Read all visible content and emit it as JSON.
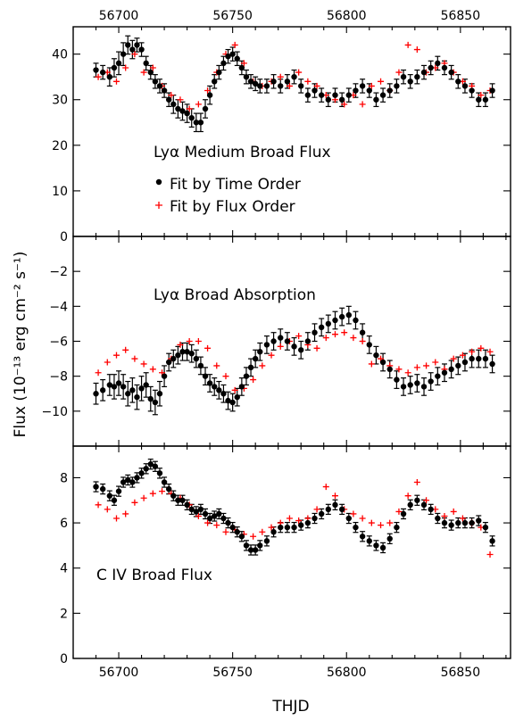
{
  "colors": {
    "time_order": "#000000",
    "flux_order": "#ff0000"
  },
  "axes": {
    "xlabel": "THJD",
    "ylabel": "Flux (10⁻¹³ erg cm⁻² s⁻¹)"
  },
  "chart_data": [
    {
      "type": "scatter",
      "annotation": "Lyα Medium Broad Flux",
      "xlim": [
        56680,
        56872
      ],
      "ylim": [
        0,
        46
      ],
      "xticks": [
        56700,
        56750,
        56800,
        56850
      ],
      "xtick_labels": [
        "56700",
        "56750",
        "56800",
        "56850"
      ],
      "yticks": [
        0,
        10,
        20,
        30,
        40
      ],
      "ytick_labels": [
        "0",
        "10",
        "20",
        "30",
        "40"
      ],
      "legend": [
        "Fit by Time Order",
        "Fit by Flux Order"
      ],
      "series": [
        {
          "name": "Fit by Time Order",
          "marker": "dot",
          "x": [
            56690,
            56693,
            56696,
            56698,
            56700,
            56702,
            56704,
            56706,
            56708,
            56710,
            56712,
            56714,
            56716,
            56718,
            56720,
            56722,
            56724,
            56726,
            56728,
            56730,
            56732,
            56734,
            56736,
            56738,
            56740,
            56742,
            56744,
            56746,
            56748,
            56750,
            56752,
            56754,
            56756,
            56758,
            56760,
            56762,
            56765,
            56768,
            56771,
            56774,
            56777,
            56780,
            56783,
            56786,
            56789,
            56792,
            56795,
            56798,
            56801,
            56804,
            56807,
            56810,
            56813,
            56816,
            56819,
            56822,
            56825,
            56828,
            56831,
            56834,
            56837,
            56840,
            56843,
            56846,
            56849,
            56852,
            56855,
            56858,
            56861,
            56864
          ],
          "y": [
            36.5,
            36,
            35,
            37,
            38,
            40,
            42,
            41,
            42,
            41,
            38,
            36,
            34,
            33,
            32,
            30,
            29,
            28,
            27.5,
            27,
            26,
            25,
            25,
            28,
            31,
            34,
            36,
            38,
            39.5,
            40,
            39,
            37,
            35,
            34,
            33.5,
            33,
            33,
            34,
            33,
            34,
            35,
            33,
            31,
            32,
            31,
            30,
            31,
            30,
            31,
            32,
            33,
            32,
            30,
            31,
            32,
            33,
            35,
            34,
            35,
            36,
            37,
            38,
            37,
            36,
            34,
            33,
            32,
            30,
            30,
            32
          ],
          "err": [
            1.5,
            1.5,
            2,
            2,
            2.5,
            2.5,
            2,
            2,
            1.5,
            1.5,
            1.5,
            1.5,
            1.5,
            1.5,
            1.5,
            1.5,
            2,
            2,
            2,
            2,
            2,
            2,
            2,
            2,
            2,
            1.5,
            1.5,
            1.5,
            1.5,
            1.5,
            1.5,
            1.5,
            1.5,
            1.5,
            1.5,
            1.5,
            1.5,
            1.5,
            1.5,
            1.5,
            1.5,
            1.5,
            1.5,
            1.5,
            1.5,
            1.5,
            1.5,
            1.5,
            1.5,
            1.5,
            1.5,
            1.5,
            1.5,
            1.5,
            1.5,
            1.5,
            1.5,
            1.5,
            1.5,
            1.5,
            1.5,
            1.5,
            1.5,
            1.5,
            1.5,
            1.5,
            1.5,
            1.5,
            1.5,
            1.5
          ]
        },
        {
          "name": "Fit by Flux Order",
          "marker": "plus",
          "x": [
            56691,
            56695,
            56699,
            56703,
            56707,
            56711,
            56715,
            56719,
            56723,
            56727,
            56731,
            56735,
            56739,
            56743,
            56747,
            56751,
            56755,
            56759,
            56763,
            56767,
            56771,
            56775,
            56779,
            56783,
            56787,
            56791,
            56795,
            56799,
            56803,
            56807,
            56811,
            56815,
            56819,
            56823,
            56827,
            56831,
            56835,
            56839,
            56843,
            56847,
            56851,
            56855,
            56859,
            56863
          ],
          "y": [
            35,
            36,
            34,
            37,
            40,
            36,
            37,
            33,
            31,
            30,
            28,
            29,
            32,
            36,
            40,
            42,
            38,
            34,
            33,
            34,
            35,
            33,
            36,
            34,
            33,
            31,
            30,
            29,
            31,
            29,
            33,
            34,
            32,
            36,
            42,
            41,
            36,
            37,
            38,
            36,
            34,
            33,
            31,
            32
          ]
        }
      ]
    },
    {
      "type": "scatter",
      "annotation": "Lyα Broad Absorption",
      "xlim": [
        56680,
        56872
      ],
      "ylim": [
        -12,
        0
      ],
      "xticks": [
        56700,
        56750,
        56800,
        56850
      ],
      "xtick_labels": [
        "56700",
        "56750",
        "56800",
        "56850"
      ],
      "yticks": [
        -10,
        -8,
        -6,
        -4,
        -2
      ],
      "ytick_labels": [
        "−10",
        "−8",
        "−6",
        "−4",
        "−2"
      ],
      "series": [
        {
          "name": "Fit by Time Order",
          "marker": "dot",
          "x": [
            56690,
            56693,
            56696,
            56698,
            56700,
            56702,
            56704,
            56706,
            56708,
            56710,
            56712,
            56714,
            56716,
            56718,
            56720,
            56722,
            56724,
            56726,
            56728,
            56730,
            56732,
            56734,
            56736,
            56738,
            56740,
            56742,
            56744,
            56746,
            56748,
            56750,
            56752,
            56754,
            56756,
            56758,
            56760,
            56762,
            56765,
            56768,
            56771,
            56774,
            56777,
            56780,
            56783,
            56786,
            56789,
            56792,
            56795,
            56798,
            56801,
            56804,
            56807,
            56810,
            56813,
            56816,
            56819,
            56822,
            56825,
            56828,
            56831,
            56834,
            56837,
            56840,
            56843,
            56846,
            56849,
            56852,
            56855,
            56858,
            56861,
            56864
          ],
          "y": [
            -9,
            -8.8,
            -8.5,
            -8.6,
            -8.4,
            -8.6,
            -9,
            -8.8,
            -9.2,
            -8.7,
            -8.5,
            -9.3,
            -9.5,
            -9,
            -8,
            -7.2,
            -7,
            -6.8,
            -6.6,
            -6.6,
            -6.7,
            -7,
            -7.4,
            -8,
            -8.4,
            -8.6,
            -8.8,
            -9,
            -9.4,
            -9.5,
            -9.2,
            -8.6,
            -8,
            -7.5,
            -7,
            -6.6,
            -6.2,
            -6,
            -5.8,
            -6,
            -6.3,
            -6.5,
            -6,
            -5.5,
            -5.2,
            -5,
            -4.8,
            -4.6,
            -4.5,
            -4.8,
            -5.5,
            -6.2,
            -6.8,
            -7.2,
            -7.6,
            -8.2,
            -8.6,
            -8.5,
            -8.4,
            -8.6,
            -8.3,
            -8,
            -7.8,
            -7.6,
            -7.4,
            -7.2,
            -7,
            -7,
            -7,
            -7.3
          ],
          "err": [
            0.6,
            0.6,
            0.6,
            0.7,
            0.7,
            0.7,
            0.7,
            0.7,
            0.7,
            0.7,
            0.7,
            0.7,
            0.7,
            0.7,
            0.6,
            0.5,
            0.5,
            0.5,
            0.5,
            0.5,
            0.5,
            0.5,
            0.5,
            0.5,
            0.5,
            0.5,
            0.5,
            0.5,
            0.5,
            0.5,
            0.5,
            0.5,
            0.5,
            0.5,
            0.5,
            0.5,
            0.5,
            0.5,
            0.5,
            0.5,
            0.5,
            0.5,
            0.5,
            0.5,
            0.5,
            0.5,
            0.5,
            0.5,
            0.5,
            0.5,
            0.5,
            0.5,
            0.5,
            0.5,
            0.5,
            0.5,
            0.5,
            0.5,
            0.5,
            0.5,
            0.5,
            0.5,
            0.5,
            0.5,
            0.5,
            0.5,
            0.5,
            0.5,
            0.5,
            0.5
          ]
        },
        {
          "name": "Fit by Flux Order",
          "marker": "plus",
          "x": [
            56691,
            56695,
            56699,
            56703,
            56707,
            56711,
            56715,
            56719,
            56723,
            56727,
            56731,
            56735,
            56739,
            56743,
            56747,
            56751,
            56755,
            56759,
            56763,
            56767,
            56771,
            56775,
            56779,
            56783,
            56787,
            56791,
            56795,
            56799,
            56803,
            56807,
            56811,
            56815,
            56819,
            56823,
            56827,
            56831,
            56835,
            56839,
            56843,
            56847,
            56851,
            56855,
            56859,
            56863
          ],
          "y": [
            -7.8,
            -7.2,
            -6.8,
            -6.5,
            -7,
            -7.3,
            -7.6,
            -7.8,
            -7,
            -6.2,
            -6,
            -6,
            -6.4,
            -7.4,
            -8,
            -8.8,
            -8.7,
            -8.2,
            -7.4,
            -6.8,
            -6.3,
            -6,
            -5.7,
            -6.2,
            -6.4,
            -5.8,
            -5.6,
            -5.5,
            -5.8,
            -6,
            -7.3,
            -7,
            -7.4,
            -7.6,
            -7.8,
            -7.5,
            -7.4,
            -7.2,
            -7.6,
            -7,
            -6.8,
            -6.6,
            -6.4,
            -6.6
          ]
        }
      ]
    },
    {
      "type": "scatter",
      "annotation": "C IV Broad Flux",
      "xlim": [
        56680,
        56872
      ],
      "ylim": [
        0,
        9.4
      ],
      "xticks": [
        56700,
        56750,
        56800,
        56850
      ],
      "xtick_labels": [
        "56700",
        "56750",
        "56800",
        "56850"
      ],
      "yticks": [
        0,
        2,
        4,
        6,
        8
      ],
      "ytick_labels": [
        "0",
        "2",
        "4",
        "6",
        "8"
      ],
      "series": [
        {
          "name": "Fit by Time Order",
          "marker": "dot",
          "x": [
            56690,
            56693,
            56696,
            56698,
            56700,
            56702,
            56704,
            56706,
            56708,
            56710,
            56712,
            56714,
            56716,
            56718,
            56720,
            56722,
            56724,
            56726,
            56728,
            56730,
            56732,
            56734,
            56736,
            56738,
            56740,
            56742,
            56744,
            56746,
            56748,
            56750,
            56752,
            56754,
            56756,
            56758,
            56760,
            56762,
            56765,
            56768,
            56771,
            56774,
            56777,
            56780,
            56783,
            56786,
            56789,
            56792,
            56795,
            56798,
            56801,
            56804,
            56807,
            56810,
            56813,
            56816,
            56819,
            56822,
            56825,
            56828,
            56831,
            56834,
            56837,
            56840,
            56843,
            56846,
            56849,
            56852,
            56855,
            56858,
            56861,
            56864
          ],
          "y": [
            7.6,
            7.5,
            7.2,
            7.0,
            7.4,
            7.8,
            7.9,
            7.8,
            8.0,
            8.2,
            8.4,
            8.6,
            8.5,
            8.2,
            7.8,
            7.5,
            7.2,
            7.0,
            7.0,
            6.8,
            6.6,
            6.5,
            6.6,
            6.4,
            6.2,
            6.3,
            6.4,
            6.2,
            6.0,
            5.8,
            5.6,
            5.4,
            5.0,
            4.8,
            4.8,
            5.0,
            5.2,
            5.6,
            5.8,
            5.8,
            5.8,
            5.9,
            6.0,
            6.2,
            6.4,
            6.6,
            6.8,
            6.6,
            6.2,
            5.8,
            5.4,
            5.2,
            5.0,
            4.9,
            5.3,
            5.8,
            6.4,
            6.8,
            7.0,
            6.8,
            6.6,
            6.2,
            6.0,
            5.9,
            6.0,
            6.0,
            6.0,
            6.1,
            5.8,
            5.2
          ],
          "err": [
            0.22,
            0.22,
            0.22,
            0.22,
            0.22,
            0.22,
            0.22,
            0.22,
            0.22,
            0.22,
            0.22,
            0.22,
            0.22,
            0.22,
            0.22,
            0.22,
            0.22,
            0.22,
            0.22,
            0.22,
            0.22,
            0.22,
            0.22,
            0.22,
            0.22,
            0.22,
            0.22,
            0.22,
            0.22,
            0.22,
            0.22,
            0.22,
            0.22,
            0.22,
            0.22,
            0.22,
            0.22,
            0.22,
            0.22,
            0.22,
            0.22,
            0.22,
            0.22,
            0.22,
            0.22,
            0.22,
            0.22,
            0.22,
            0.22,
            0.22,
            0.22,
            0.22,
            0.22,
            0.22,
            0.22,
            0.22,
            0.22,
            0.22,
            0.22,
            0.22,
            0.22,
            0.22,
            0.22,
            0.22,
            0.22,
            0.22,
            0.22,
            0.22,
            0.22,
            0.22
          ]
        },
        {
          "name": "Fit by Flux Order",
          "marker": "plus",
          "x": [
            56691,
            56695,
            56699,
            56703,
            56707,
            56711,
            56715,
            56719,
            56723,
            56727,
            56731,
            56735,
            56739,
            56743,
            56747,
            56751,
            56755,
            56759,
            56763,
            56767,
            56771,
            56775,
            56779,
            56783,
            56787,
            56791,
            56795,
            56799,
            56803,
            56807,
            56811,
            56815,
            56819,
            56823,
            56827,
            56831,
            56835,
            56839,
            56843,
            56847,
            56851,
            56855,
            56859,
            56863
          ],
          "y": [
            6.8,
            6.6,
            6.2,
            6.4,
            6.9,
            7.1,
            7.3,
            7.4,
            7.3,
            7.1,
            6.8,
            6.3,
            6.0,
            5.9,
            5.6,
            5.7,
            5.5,
            5.4,
            5.6,
            5.8,
            6.0,
            6.2,
            6.1,
            6.2,
            6.6,
            7.6,
            7.2,
            6.6,
            6.4,
            6.2,
            6.0,
            5.9,
            6.0,
            6.5,
            7.2,
            7.8,
            7.0,
            6.6,
            6.3,
            6.5,
            6.2,
            6.0,
            5.8,
            4.6
          ]
        }
      ]
    }
  ]
}
